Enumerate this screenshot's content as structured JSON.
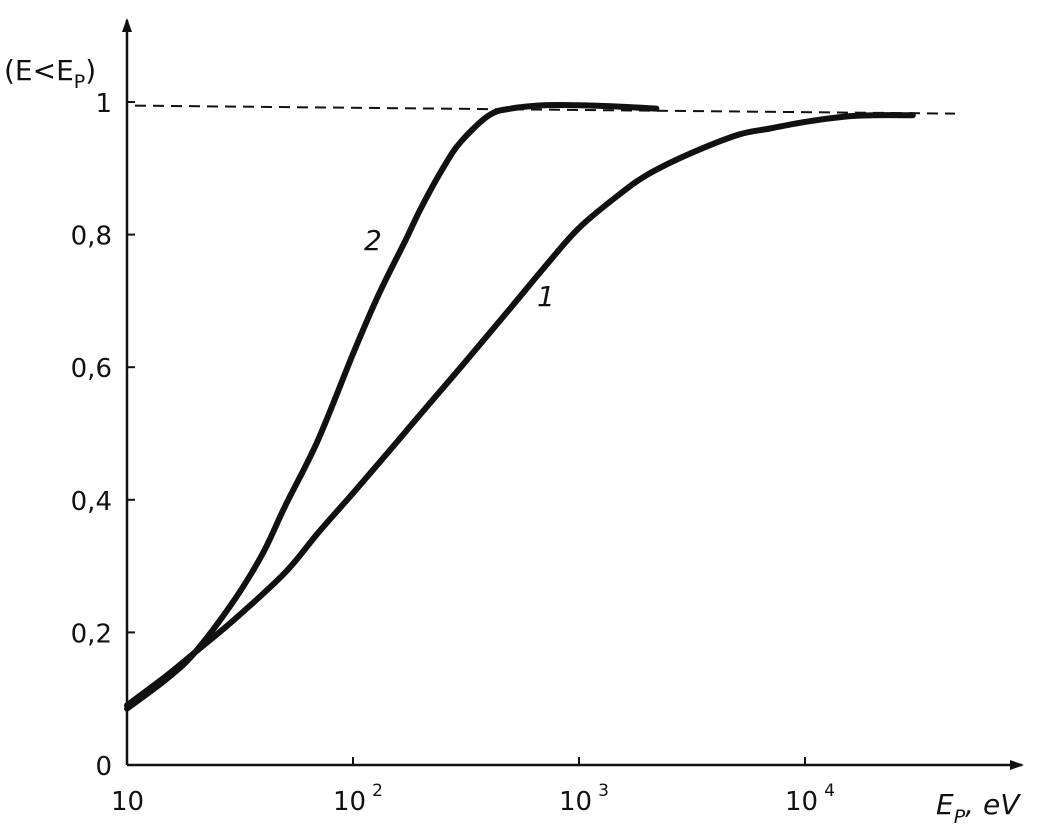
{
  "chart_data": {
    "type": "line",
    "x_scale": "log",
    "xlim": [
      10,
      40000
    ],
    "ylim": [
      0,
      1.05
    ],
    "x_ticks": [
      {
        "value": 10,
        "base": "10",
        "exp": ""
      },
      {
        "value": 100,
        "base": "10",
        "exp": "2"
      },
      {
        "value": 1000,
        "base": "10",
        "exp": "3"
      },
      {
        "value": 10000,
        "base": "10",
        "exp": "4"
      }
    ],
    "y_ticks": [
      {
        "value": 0,
        "label": "0"
      },
      {
        "value": 0.2,
        "label": "0,2"
      },
      {
        "value": 0.4,
        "label": "0,4"
      },
      {
        "value": 0.6,
        "label": "0,6"
      },
      {
        "value": 0.8,
        "label": "0,8"
      },
      {
        "value": 1.0,
        "label": "1"
      }
    ],
    "xlabel": {
      "main": "E",
      "sub": "P",
      "tail": ", eV"
    },
    "ylabel": {
      "main": "(E<E",
      "sub": "P",
      "tail": ")"
    },
    "asymptote": {
      "y": 0.99
    },
    "series": [
      {
        "name": "1",
        "x": [
          10,
          15,
          20,
          30,
          50,
          70,
          100,
          150,
          200,
          300,
          500,
          700,
          1000,
          1500,
          2000,
          3000,
          5000,
          7000,
          10000,
          15000,
          20000,
          30000
        ],
        "y": [
          0.09,
          0.135,
          0.17,
          0.22,
          0.29,
          0.35,
          0.41,
          0.48,
          0.53,
          0.6,
          0.69,
          0.75,
          0.81,
          0.86,
          0.89,
          0.92,
          0.95,
          0.96,
          0.97,
          0.978,
          0.98,
          0.98
        ]
      },
      {
        "name": "2",
        "x": [
          10,
          15,
          20,
          30,
          40,
          50,
          70,
          100,
          130,
          170,
          200,
          250,
          300,
          400,
          500,
          700,
          1000,
          1500,
          2200
        ],
        "y": [
          0.085,
          0.13,
          0.17,
          0.25,
          0.32,
          0.39,
          0.49,
          0.62,
          0.71,
          0.79,
          0.84,
          0.9,
          0.94,
          0.98,
          0.99,
          0.995,
          0.995,
          0.993,
          0.99
        ]
      }
    ]
  }
}
